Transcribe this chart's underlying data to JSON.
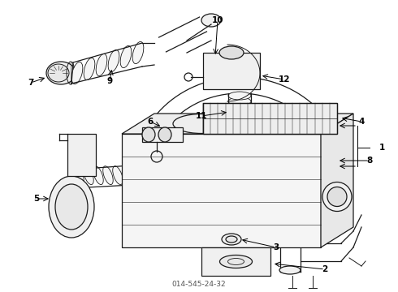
{
  "title": "014-545-24-32",
  "bg_color": "#ffffff",
  "line_color": "#1a1a1a",
  "fig_w": 4.9,
  "fig_h": 3.6,
  "dpi": 100
}
